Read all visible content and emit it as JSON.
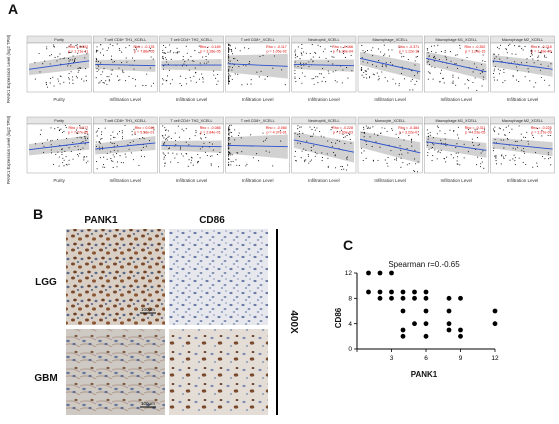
{
  "panels": {
    "a": "A",
    "b": "B",
    "c": "C"
  },
  "figA": {
    "rows": [
      {
        "ylabel": "PANK1 Expression Level (log2 TPM)",
        "cells": [
          {
            "header": "Purity",
            "xlabel": "Purity",
            "stat1": "Rho = 0.302",
            "stat2": "p = 1.71e-11",
            "trend": -0.35,
            "spread": 1.0
          },
          {
            "header": "T cell CD8+ TH1_XCELL",
            "xlabel": "Infiltration Level",
            "stat1": "Rho = -0.178",
            "stat2": "p = 7.86e-05",
            "trend": 0.05,
            "spread": 1.0
          },
          {
            "header": "T cell CD4+ TH2_XCELL",
            "xlabel": "Infiltration Level",
            "stat1": "Rho = -0.169",
            "stat2": "p = 3.28e-05",
            "trend": 0.0,
            "spread": 1.0
          },
          {
            "header": "T cell CD8+_XCELL",
            "xlabel": "Infiltration Level",
            "stat1": "Rho = -0.117",
            "stat2": "p = 1.05e-02",
            "trend": 0.1,
            "spread": 2.5
          },
          {
            "header": "Neutrophil_XCELL",
            "xlabel": "Infiltration Level",
            "stat1": "Rho = -0.166",
            "stat2": "p = 1.39e-04",
            "trend": 0.05,
            "spread": 1.0
          },
          {
            "header": "Macrophage_XCELL",
            "xlabel": "Infiltration Level",
            "stat1": "Rho = -0.371",
            "stat2": "p = 1.12e-16",
            "trend": 0.55,
            "spread": 1.0
          },
          {
            "header": "Macrophage M1_XCELL",
            "xlabel": "Infiltration Level",
            "stat1": "Rho = -0.352",
            "stat2": "p = 1.24e-15",
            "trend": 0.55,
            "spread": 1.0
          },
          {
            "header": "Macrophage M2_XCELL",
            "xlabel": "Infiltration Level",
            "stat1": "Rho = -0.218",
            "stat2": "p = 1.49e-06",
            "trend": 0.35,
            "spread": 1.0
          }
        ]
      },
      {
        "ylabel": "PANK1 Expression Level (log2 TPM)",
        "cells": [
          {
            "header": "Purity",
            "xlabel": "Purity",
            "stat1": "Rho = 0.317",
            "stat2": "p = 7.77e-05",
            "trend": -0.3,
            "spread": 1.0
          },
          {
            "header": "T cell CD8+ TH1_XCELL",
            "xlabel": "Infiltration Level",
            "stat1": "Rho = 0.046",
            "stat2": "p = 5.53e-01",
            "trend": -0.25,
            "spread": 1.0
          },
          {
            "header": "T cell CD4+ TH2_XCELL",
            "xlabel": "Infiltration Level",
            "stat1": "Rho = -0.085",
            "stat2": "p = 2.84e-01",
            "trend": 0.05,
            "spread": 1.0
          },
          {
            "header": "T cell CD8+_XCELL",
            "xlabel": "Infiltration Level",
            "stat1": "Rho = -0.060",
            "stat2": "p = 4.37e-01",
            "trend": 0.05,
            "spread": 2.5
          },
          {
            "header": "Neutrophil_XCELL",
            "xlabel": "Infiltration Level",
            "stat1": "Rho = -0.228",
            "stat2": "p = 2.93e-03",
            "trend": 0.5,
            "spread": 1.6
          },
          {
            "header": "Monocyte_XCELL",
            "xlabel": "Infiltration Level",
            "stat1": "Rho = -0.384",
            "stat2": "p = 3.22e-07",
            "trend": 0.55,
            "spread": 1.6
          },
          {
            "header": "Macrophage M1_XCELL",
            "xlabel": "Infiltration Level",
            "stat1": "Rho = -0.311",
            "stat2": "p = 4.23e-05",
            "trend": 0.35,
            "spread": 1.0
          },
          {
            "header": "Macrophage M2_XCELL",
            "xlabel": "Infiltration Level",
            "stat1": "Rho = -0.225",
            "stat2": "p = 3.27e-03",
            "trend": 0.25,
            "spread": 1.0
          }
        ]
      }
    ]
  },
  "figB": {
    "col1": "PANK1",
    "col2": "CD86",
    "row1": "LGG",
    "row2": "GBM",
    "magnification": "400X",
    "scalebar": "100µm"
  },
  "chart_data": {
    "type": "scatter",
    "title": "Spearman r=0.-0.65",
    "xlabel": "PANK1",
    "ylabel": "CD86",
    "xlim": [
      0,
      12
    ],
    "ylim": [
      0,
      12
    ],
    "xticks": [
      0,
      3,
      6,
      9,
      12
    ],
    "yticks": [
      0,
      4,
      8,
      12
    ],
    "points": [
      [
        1,
        12
      ],
      [
        2,
        12
      ],
      [
        3,
        12
      ],
      [
        1,
        9
      ],
      [
        2,
        9
      ],
      [
        3,
        9
      ],
      [
        2,
        8
      ],
      [
        3,
        8
      ],
      [
        4,
        9
      ],
      [
        4,
        8
      ],
      [
        5,
        9
      ],
      [
        5,
        8
      ],
      [
        5,
        4
      ],
      [
        6,
        9
      ],
      [
        6,
        8
      ],
      [
        4,
        6
      ],
      [
        4,
        3
      ],
      [
        4,
        2
      ],
      [
        6,
        6
      ],
      [
        6,
        4
      ],
      [
        6,
        2
      ],
      [
        8,
        8
      ],
      [
        9,
        8
      ],
      [
        8,
        6
      ],
      [
        8,
        4
      ],
      [
        8,
        3
      ],
      [
        9,
        3
      ],
      [
        9,
        2
      ],
      [
        12,
        6
      ],
      [
        12,
        4
      ]
    ]
  }
}
